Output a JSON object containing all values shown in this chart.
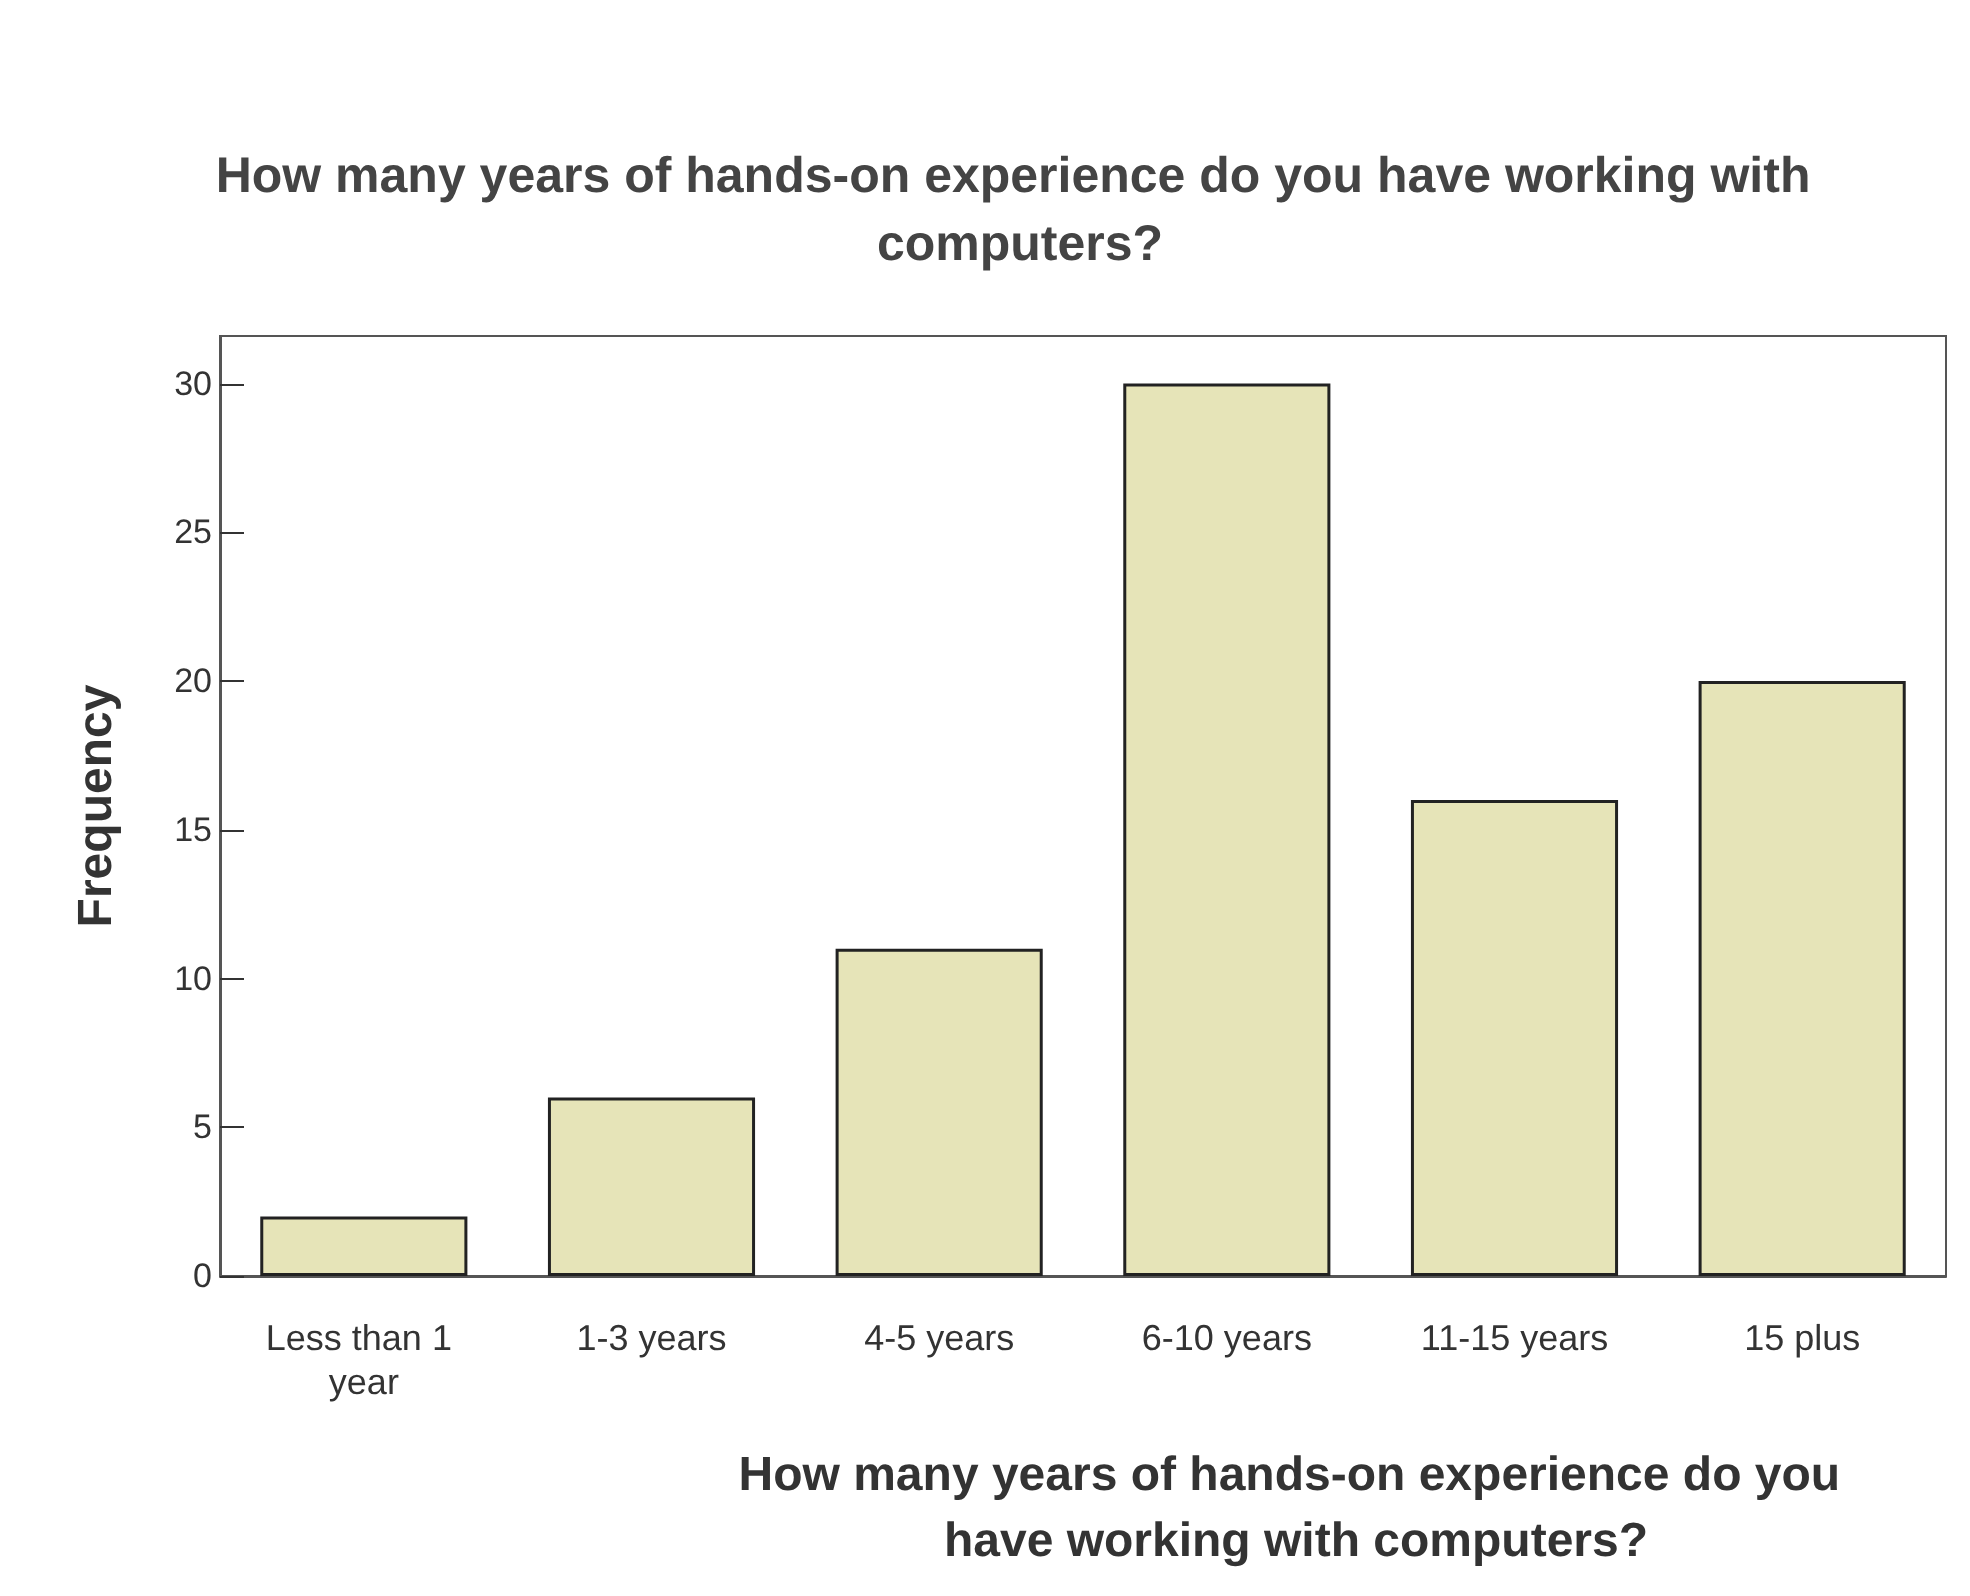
{
  "chart_data": {
    "type": "bar",
    "title": "How many years of hands-on experience do you have working with computers?",
    "xlabel": "How many years of hands-on experience do you have working with computers?",
    "ylabel": "Frequency",
    "categories": [
      "Less than 1 year",
      "1-3 years",
      "4-5 years",
      "6-10 years",
      "11-15 years",
      "15 plus"
    ],
    "values": [
      2,
      6,
      11,
      30,
      16,
      20
    ],
    "color": "#e6e4b8",
    "ylim": [
      0,
      31.6
    ],
    "yticks": [
      0,
      5,
      10,
      15,
      20,
      25,
      30
    ],
    "grid": false
  }
}
